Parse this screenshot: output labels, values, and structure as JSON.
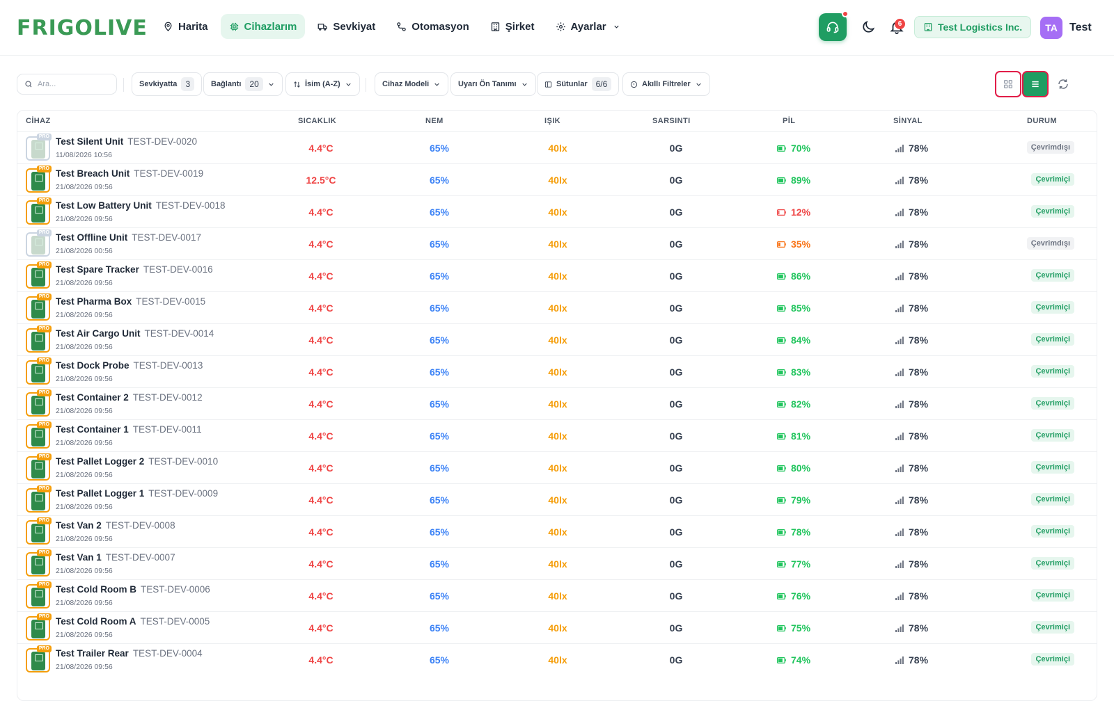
{
  "brand": {
    "logo_text": "FRIGOLIVE"
  },
  "nav": {
    "items": [
      {
        "label": "Harita",
        "icon": "map-pin-icon",
        "active": false
      },
      {
        "label": "Cihazlarım",
        "icon": "chip-icon",
        "active": true
      },
      {
        "label": "Sevkiyat",
        "icon": "truck-icon",
        "active": false
      },
      {
        "label": "Otomasyon",
        "icon": "workflow-icon",
        "active": false
      },
      {
        "label": "Şirket",
        "icon": "building-icon",
        "active": false
      },
      {
        "label": "Ayarlar",
        "icon": "gear-icon",
        "active": false
      }
    ]
  },
  "header": {
    "notification_count": "6",
    "company": "Test Logistics Inc.",
    "avatar_initials": "TA",
    "user_name": "Test"
  },
  "toolbar": {
    "search_placeholder": "Ara...",
    "in_shipment_label": "Sevkiyatta",
    "in_shipment_count": "3",
    "connection_label": "Bağlantı",
    "connection_count": "20",
    "sort_label": "İsim (A-Z)",
    "model_label": "Cihaz Modeli",
    "alert_label": "Uyarı Ön Tanımı",
    "columns_label": "Sütunlar",
    "columns_count": "6/6",
    "smart_filter_label": "Akıllı Filtreler"
  },
  "table": {
    "headers": [
      "CİHAZ",
      "SICAKLIK",
      "NEM",
      "IŞIK",
      "SARSINTI",
      "PİL",
      "SİNYAL",
      "DURUM"
    ],
    "rows": [
      {
        "name": "Test Silent Unit",
        "code": "TEST-DEV-0020",
        "time": "11/08/2026 10:56",
        "temp": "4.4°C",
        "hum": "65%",
        "light": "40lx",
        "shock": "0G",
        "battery": "70%",
        "signal": "78%",
        "status": "Çevrimdışı",
        "online": false
      },
      {
        "name": "Test Breach Unit",
        "code": "TEST-DEV-0019",
        "time": "21/08/2026 09:56",
        "temp": "12.5°C",
        "hum": "65%",
        "light": "40lx",
        "shock": "0G",
        "battery": "89%",
        "signal": "78%",
        "status": "Çevrimiçi",
        "online": true
      },
      {
        "name": "Test Low Battery Unit",
        "code": "TEST-DEV-0018",
        "time": "21/08/2026 09:56",
        "temp": "4.4°C",
        "hum": "65%",
        "light": "40lx",
        "shock": "0G",
        "battery": "12%",
        "signal": "78%",
        "status": "Çevrimiçi",
        "online": true
      },
      {
        "name": "Test Offline Unit",
        "code": "TEST-DEV-0017",
        "time": "21/08/2026 00:56",
        "temp": "4.4°C",
        "hum": "65%",
        "light": "40lx",
        "shock": "0G",
        "battery": "35%",
        "signal": "78%",
        "status": "Çevrimdışı",
        "online": false
      },
      {
        "name": "Test Spare Tracker",
        "code": "TEST-DEV-0016",
        "time": "21/08/2026 09:56",
        "temp": "4.4°C",
        "hum": "65%",
        "light": "40lx",
        "shock": "0G",
        "battery": "86%",
        "signal": "78%",
        "status": "Çevrimiçi",
        "online": true
      },
      {
        "name": "Test Pharma Box",
        "code": "TEST-DEV-0015",
        "time": "21/08/2026 09:56",
        "temp": "4.4°C",
        "hum": "65%",
        "light": "40lx",
        "shock": "0G",
        "battery": "85%",
        "signal": "78%",
        "status": "Çevrimiçi",
        "online": true
      },
      {
        "name": "Test Air Cargo Unit",
        "code": "TEST-DEV-0014",
        "time": "21/08/2026 09:56",
        "temp": "4.4°C",
        "hum": "65%",
        "light": "40lx",
        "shock": "0G",
        "battery": "84%",
        "signal": "78%",
        "status": "Çevrimiçi",
        "online": true
      },
      {
        "name": "Test Dock Probe",
        "code": "TEST-DEV-0013",
        "time": "21/08/2026 09:56",
        "temp": "4.4°C",
        "hum": "65%",
        "light": "40lx",
        "shock": "0G",
        "battery": "83%",
        "signal": "78%",
        "status": "Çevrimiçi",
        "online": true
      },
      {
        "name": "Test Container 2",
        "code": "TEST-DEV-0012",
        "time": "21/08/2026 09:56",
        "temp": "4.4°C",
        "hum": "65%",
        "light": "40lx",
        "shock": "0G",
        "battery": "82%",
        "signal": "78%",
        "status": "Çevrimiçi",
        "online": true
      },
      {
        "name": "Test Container 1",
        "code": "TEST-DEV-0011",
        "time": "21/08/2026 09:56",
        "temp": "4.4°C",
        "hum": "65%",
        "light": "40lx",
        "shock": "0G",
        "battery": "81%",
        "signal": "78%",
        "status": "Çevrimiçi",
        "online": true
      },
      {
        "name": "Test Pallet Logger 2",
        "code": "TEST-DEV-0010",
        "time": "21/08/2026 09:56",
        "temp": "4.4°C",
        "hum": "65%",
        "light": "40lx",
        "shock": "0G",
        "battery": "80%",
        "signal": "78%",
        "status": "Çevrimiçi",
        "online": true
      },
      {
        "name": "Test Pallet Logger 1",
        "code": "TEST-DEV-0009",
        "time": "21/08/2026 09:56",
        "temp": "4.4°C",
        "hum": "65%",
        "light": "40lx",
        "shock": "0G",
        "battery": "79%",
        "signal": "78%",
        "status": "Çevrimiçi",
        "online": true
      },
      {
        "name": "Test Van 2",
        "code": "TEST-DEV-0008",
        "time": "21/08/2026 09:56",
        "temp": "4.4°C",
        "hum": "65%",
        "light": "40lx",
        "shock": "0G",
        "battery": "78%",
        "signal": "78%",
        "status": "Çevrimiçi",
        "online": true
      },
      {
        "name": "Test Van 1",
        "code": "TEST-DEV-0007",
        "time": "21/08/2026 09:56",
        "temp": "4.4°C",
        "hum": "65%",
        "light": "40lx",
        "shock": "0G",
        "battery": "77%",
        "signal": "78%",
        "status": "Çevrimiçi",
        "online": true
      },
      {
        "name": "Test Cold Room B",
        "code": "TEST-DEV-0006",
        "time": "21/08/2026 09:56",
        "temp": "4.4°C",
        "hum": "65%",
        "light": "40lx",
        "shock": "0G",
        "battery": "76%",
        "signal": "78%",
        "status": "Çevrimiçi",
        "online": true
      },
      {
        "name": "Test Cold Room A",
        "code": "TEST-DEV-0005",
        "time": "21/08/2026 09:56",
        "temp": "4.4°C",
        "hum": "65%",
        "light": "40lx",
        "shock": "0G",
        "battery": "75%",
        "signal": "78%",
        "status": "Çevrimiçi",
        "online": true
      },
      {
        "name": "Test Trailer Rear",
        "code": "TEST-DEV-0004",
        "time": "21/08/2026 09:56",
        "temp": "4.4°C",
        "hum": "65%",
        "light": "40lx",
        "shock": "0G",
        "battery": "74%",
        "signal": "78%",
        "status": "Çevrimiçi",
        "online": true
      }
    ]
  },
  "colors": {
    "brand": "#1f9d62",
    "temperature": "#ef4444",
    "humidity": "#3b82f6",
    "light": "#f59e0b",
    "battery_ok": "#22c55e",
    "battery_low": "#ef4444",
    "battery_mid": "#f97316",
    "highlight": "#e11d48"
  }
}
